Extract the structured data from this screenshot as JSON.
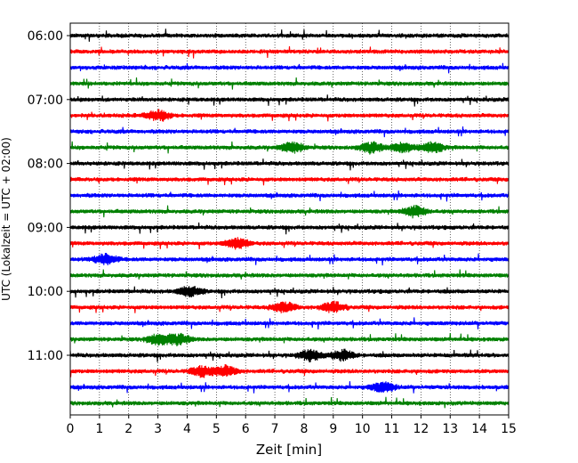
{
  "chart_data": {
    "type": "line",
    "title": "",
    "xlabel": "Zeit  [min]",
    "ylabel": "UTC (Lokalzeit = UTC + 02:00)",
    "xlim": [
      0,
      15
    ],
    "x_ticks": [
      "0",
      "1",
      "2",
      "3",
      "4",
      "5",
      "6",
      "7",
      "8",
      "9",
      "10",
      "11",
      "12",
      "13",
      "14",
      "15"
    ],
    "y_tick_labels": [
      "06:00",
      "07:00",
      "08:00",
      "09:00",
      "10:00",
      "11:00"
    ],
    "trace_start_times": [
      "06:00",
      "06:15",
      "06:30",
      "06:45",
      "07:00",
      "07:15",
      "07:30",
      "07:45",
      "08:00",
      "08:15",
      "08:30",
      "08:45",
      "09:00",
      "09:15",
      "09:30",
      "09:45",
      "10:00",
      "10:15",
      "10:30",
      "10:45",
      "11:00",
      "11:15",
      "11:30",
      "11:45"
    ],
    "trace_minutes_per_line": 15,
    "trace_colors": [
      "#000000",
      "#ff0000",
      "#0000ff",
      "#008000"
    ],
    "grid_x": true,
    "grid_style": "dotted",
    "legend": "none"
  }
}
